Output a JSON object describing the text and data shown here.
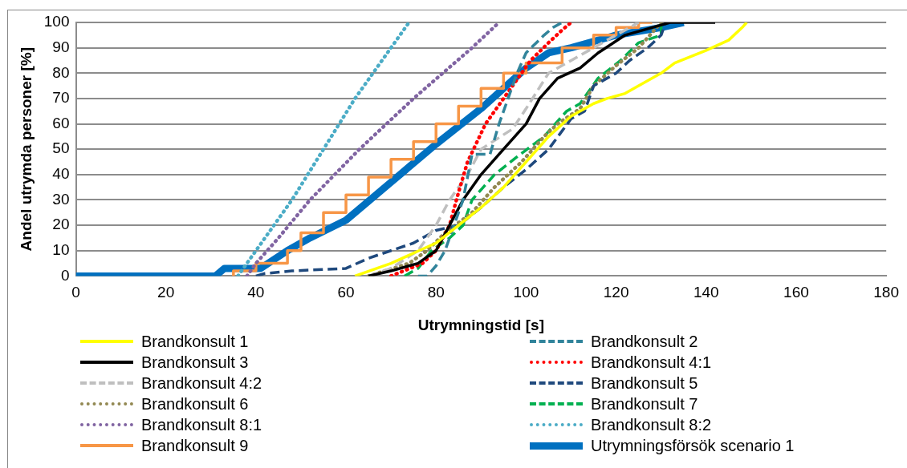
{
  "chart_data": {
    "type": "line",
    "xlabel": "Utrymningstid [s]",
    "ylabel": "Andel utrymda personer [%]",
    "xlim": [
      0,
      180
    ],
    "xticks": [
      0,
      20,
      40,
      60,
      80,
      100,
      120,
      140,
      160,
      180
    ],
    "ylim": [
      0,
      100
    ],
    "yticks": [
      0,
      10,
      20,
      30,
      40,
      50,
      60,
      70,
      80,
      90,
      100
    ],
    "grid": "y",
    "legend": "bottom",
    "marker": "none",
    "series": [
      {
        "name": "Brandkonsult 1",
        "color": "#ffff00",
        "line_style": "solid",
        "x": [
          62,
          70,
          80,
          85,
          90,
          95,
          100,
          105,
          110,
          115,
          118,
          122,
          125,
          130,
          133,
          140,
          145,
          148,
          149
        ],
        "values": [
          0,
          5,
          13,
          20,
          27,
          35,
          45,
          55,
          63,
          68,
          70,
          72,
          75,
          80,
          84,
          89,
          93,
          98,
          100
        ]
      },
      {
        "name": "Brandkonsult 2",
        "color": "#31849b",
        "line_style": "dashed",
        "x": [
          76,
          78,
          80,
          82,
          84,
          86,
          88,
          92,
          94,
          96,
          98,
          100,
          104,
          106,
          108
        ],
        "values": [
          0,
          0,
          4,
          10,
          20,
          30,
          48,
          48,
          60,
          70,
          80,
          88,
          95,
          98,
          100
        ]
      },
      {
        "name": "Brandkonsult 3",
        "color": "#000000",
        "line_style": "solid",
        "x": [
          65,
          70,
          76,
          80,
          83,
          86,
          90,
          95,
          100,
          103,
          107,
          112,
          116,
          122,
          128,
          132,
          142
        ],
        "values": [
          0,
          2,
          5,
          10,
          20,
          30,
          40,
          50,
          60,
          70,
          78,
          82,
          88,
          95,
          98,
          100,
          100
        ]
      },
      {
        "name": "Brandkonsult 4:1",
        "color": "#ff0000",
        "line_style": "dotted",
        "x": [
          70,
          77,
          80,
          83,
          85,
          87,
          91,
          97,
          101,
          105,
          108,
          110
        ],
        "values": [
          0,
          5,
          10,
          20,
          33,
          45,
          60,
          75,
          85,
          92,
          97,
          100
        ]
      },
      {
        "name": "Brandkonsult 4:2",
        "color": "#bfbfbf",
        "line_style": "dashed",
        "x": [
          65,
          70,
          76,
          80,
          83,
          87,
          90,
          97,
          100,
          105,
          110,
          120,
          125
        ],
        "values": [
          0,
          3,
          10,
          20,
          30,
          40,
          50,
          58,
          66,
          80,
          85,
          95,
          100
        ]
      },
      {
        "name": "Brandkonsult 5",
        "color": "#1f497d",
        "line_style": "dashed",
        "x": [
          40,
          42,
          48,
          60,
          65,
          70,
          75,
          80,
          85,
          90,
          95,
          100,
          105,
          110,
          113,
          115,
          120,
          123,
          127,
          130,
          131
        ],
        "values": [
          0,
          1,
          2,
          3,
          7,
          10,
          13,
          18,
          20,
          27,
          35,
          42,
          50,
          62,
          65,
          75,
          80,
          85,
          90,
          95,
          100
        ]
      },
      {
        "name": "Brandkonsult 6",
        "color": "#938953",
        "line_style": "dotted",
        "x": [
          65,
          74,
          78,
          82,
          88,
          93,
          99,
          104,
          107,
          112,
          115,
          120,
          125,
          130
        ],
        "values": [
          0,
          5,
          10,
          17,
          25,
          35,
          45,
          55,
          60,
          66,
          75,
          83,
          90,
          100
        ]
      },
      {
        "name": "Brandkonsult 7",
        "color": "#00b050",
        "line_style": "dashed",
        "x": [
          73,
          76,
          79,
          83,
          86,
          88,
          93,
          98,
          104,
          109,
          112,
          116,
          121,
          125,
          130,
          130
        ],
        "values": [
          0,
          3,
          10,
          15,
          20,
          30,
          40,
          47,
          55,
          65,
          68,
          78,
          85,
          92,
          95,
          100
        ]
      },
      {
        "name": "Brandkonsult 8:1",
        "color": "#8064a2",
        "line_style": "dotted",
        "x": [
          38,
          40,
          45,
          52,
          63,
          75,
          88,
          94
        ],
        "values": [
          0,
          5,
          15,
          30,
          50,
          70,
          90,
          100
        ]
      },
      {
        "name": "Brandkonsult 8:2",
        "color": "#4bacc6",
        "line_style": "dotted",
        "x": [
          36,
          40,
          48,
          55,
          62,
          70,
          74
        ],
        "values": [
          0,
          10,
          30,
          50,
          70,
          90,
          100
        ]
      },
      {
        "name": "Brandkonsult 9",
        "color": "#f79646",
        "line_style": "solid",
        "type": "step",
        "x": [
          35,
          40,
          47,
          50,
          55,
          60,
          65,
          70,
          75,
          80,
          85,
          90,
          95,
          100,
          108,
          115,
          120,
          125,
          128
        ],
        "values": [
          0,
          2,
          5,
          10,
          17,
          25,
          32,
          39,
          46,
          53,
          60,
          67,
          74,
          80,
          84,
          90,
          95,
          98,
          100
        ]
      },
      {
        "name": "Utrymningsförsök scenario 1",
        "color": "#0070c0",
        "line_style": "solid",
        "x": [
          0,
          31,
          33,
          41,
          47,
          52,
          60,
          70,
          80,
          90,
          100,
          105,
          110,
          120,
          130,
          135
        ],
        "values": [
          0,
          0,
          3,
          3,
          10,
          15,
          22,
          37,
          52,
          66,
          82,
          88,
          90,
          95,
          98,
          100
        ]
      }
    ]
  }
}
